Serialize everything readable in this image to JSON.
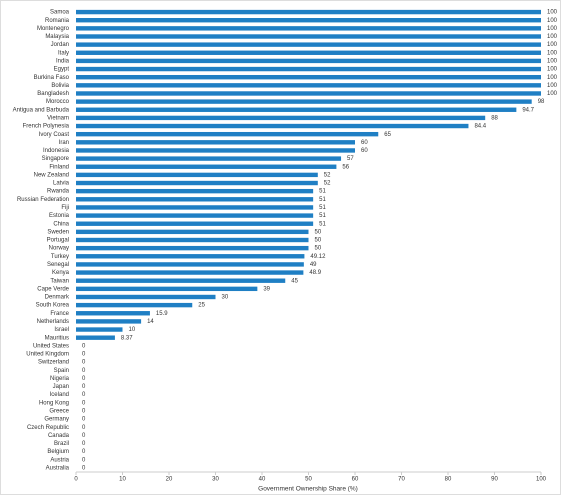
{
  "chart_data": {
    "type": "bar",
    "orientation": "horizontal",
    "x_label": "Government Ownership Share (%)",
    "categories": [
      "Samoa",
      "Romania",
      "Montenegro",
      "Malaysia",
      "Jordan",
      "Italy",
      "India",
      "Egypt",
      "Burkina Faso",
      "Bolivia",
      "Bangladesh",
      "Morocco",
      "Antigua and Barbuda",
      "Vietnam",
      "French Polynesia",
      "Ivory Coast",
      "Iran",
      "Indonesia",
      "Singapore",
      "Finland",
      "New Zealand",
      "Latvia",
      "Rwanda",
      "Russian Federation",
      "Fiji",
      "Estonia",
      "China",
      "Sweden",
      "Portugal",
      "Norway",
      "Turkey",
      "Senegal",
      "Kenya",
      "Taiwan",
      "Cape Verde",
      "Denmark",
      "South Korea",
      "France",
      "Netherlands",
      "Israel",
      "Mauritius",
      "United States",
      "United Kingdom",
      "Switzerland",
      "Spain",
      "Nigeria",
      "Japan",
      "Iceland",
      "Hong Kong",
      "Greece",
      "Germany",
      "Czech Republic",
      "Canada",
      "Brazil",
      "Belgium",
      "Austria",
      "Australia"
    ],
    "values": [
      100,
      100,
      100,
      100,
      100,
      100,
      100,
      100,
      100,
      100,
      100,
      98,
      94.7,
      88,
      84.4,
      65,
      60,
      60,
      57,
      56,
      52,
      52,
      51,
      51,
      51,
      51,
      51,
      50,
      50,
      50,
      49.12,
      49,
      48.9,
      45,
      39,
      30,
      25,
      15.9,
      14,
      10,
      8.37,
      0,
      0,
      0,
      0,
      0,
      0,
      0,
      0,
      0,
      0,
      0,
      0,
      0,
      0,
      0,
      0
    ],
    "color": "#1f7fc4",
    "xlim": [
      0,
      100
    ],
    "xticks": [
      0,
      10,
      20,
      30,
      40,
      50,
      60,
      70,
      80,
      90,
      100
    ],
    "grid": false
  }
}
